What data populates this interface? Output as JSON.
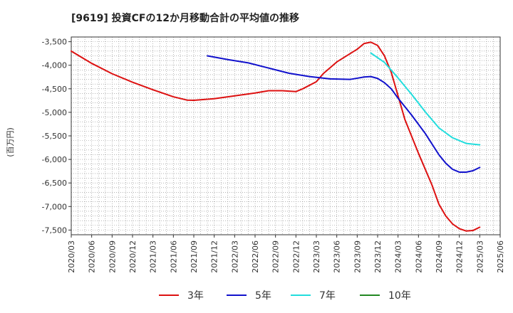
{
  "chart_data": {
    "type": "line",
    "title": "[9619]  投資CFの12か月移動合計の平均値の推移",
    "ylabel": "(百万円)",
    "xlabel": "",
    "ylim": [
      -7600,
      -3400
    ],
    "yticks": [
      -3500,
      -4000,
      -4500,
      -5000,
      -5500,
      -6000,
      -6500,
      -7000,
      -7500
    ],
    "ytick_labels": [
      "-3,500",
      "-4,000",
      "-4,500",
      "-5,000",
      "-5,500",
      "-6,000",
      "-6,500",
      "-7,000",
      "-7,500"
    ],
    "xlim": [
      "2020-03",
      "2025-06"
    ],
    "xticks": [
      "2020/03",
      "2020/06",
      "2020/09",
      "2020/12",
      "2021/03",
      "2021/06",
      "2021/09",
      "2021/12",
      "2022/03",
      "2022/06",
      "2022/09",
      "2022/12",
      "2023/03",
      "2023/06",
      "2023/09",
      "2023/12",
      "2024/03",
      "2024/06",
      "2024/09",
      "2024/12",
      "2025/03",
      "2025/06"
    ],
    "grid": true,
    "legend_position": "bottom",
    "series": [
      {
        "name": "3年",
        "color": "#dd1111",
        "points": [
          [
            "2020-03",
            -3700
          ],
          [
            "2020-06",
            -3960
          ],
          [
            "2020-09",
            -4180
          ],
          [
            "2020-12",
            -4360
          ],
          [
            "2021-03",
            -4520
          ],
          [
            "2021-06",
            -4670
          ],
          [
            "2021-08",
            -4740
          ],
          [
            "2021-09",
            -4745
          ],
          [
            "2021-12",
            -4710
          ],
          [
            "2022-03",
            -4650
          ],
          [
            "2022-06",
            -4590
          ],
          [
            "2022-08",
            -4540
          ],
          [
            "2022-10",
            -4540
          ],
          [
            "2022-12",
            -4560
          ],
          [
            "2023-01",
            -4500
          ],
          [
            "2023-03",
            -4350
          ],
          [
            "2023-04",
            -4180
          ],
          [
            "2023-06",
            -3930
          ],
          [
            "2023-09",
            -3660
          ],
          [
            "2023-10",
            -3540
          ],
          [
            "2023-11",
            -3510
          ],
          [
            "2023-12",
            -3580
          ],
          [
            "2024-01",
            -3800
          ],
          [
            "2024-02",
            -4150
          ],
          [
            "2024-03",
            -4650
          ],
          [
            "2024-04",
            -5150
          ],
          [
            "2024-06",
            -5870
          ],
          [
            "2024-08",
            -6550
          ],
          [
            "2024-09",
            -6950
          ],
          [
            "2024-10",
            -7200
          ],
          [
            "2024-11",
            -7370
          ],
          [
            "2024-12",
            -7470
          ],
          [
            "2025-01",
            -7520
          ],
          [
            "2025-02",
            -7510
          ],
          [
            "2025-03",
            -7440
          ]
        ]
      },
      {
        "name": "5年",
        "color": "#1111cc",
        "points": [
          [
            "2021-11",
            -3800
          ],
          [
            "2022-02",
            -3880
          ],
          [
            "2022-05",
            -3950
          ],
          [
            "2022-08",
            -4060
          ],
          [
            "2022-11",
            -4170
          ],
          [
            "2023-02",
            -4240
          ],
          [
            "2023-05",
            -4290
          ],
          [
            "2023-08",
            -4300
          ],
          [
            "2023-10",
            -4250
          ],
          [
            "2023-11",
            -4240
          ],
          [
            "2023-12",
            -4280
          ],
          [
            "2024-01",
            -4370
          ],
          [
            "2024-02",
            -4500
          ],
          [
            "2024-03",
            -4700
          ],
          [
            "2024-05",
            -5060
          ],
          [
            "2024-07",
            -5450
          ],
          [
            "2024-09",
            -5900
          ],
          [
            "2024-10",
            -6080
          ],
          [
            "2024-11",
            -6210
          ],
          [
            "2024-12",
            -6270
          ],
          [
            "2025-01",
            -6270
          ],
          [
            "2025-02",
            -6240
          ],
          [
            "2025-03",
            -6170
          ]
        ]
      },
      {
        "name": "7年",
        "color": "#22dddd",
        "points": [
          [
            "2023-11",
            -3740
          ],
          [
            "2024-01",
            -3940
          ],
          [
            "2024-03",
            -4270
          ],
          [
            "2024-05",
            -4620
          ],
          [
            "2024-07",
            -4990
          ],
          [
            "2024-09",
            -5330
          ],
          [
            "2024-11",
            -5540
          ],
          [
            "2025-01",
            -5660
          ],
          [
            "2025-03",
            -5690
          ]
        ]
      },
      {
        "name": "10年",
        "color": "#228822",
        "points": []
      }
    ]
  }
}
